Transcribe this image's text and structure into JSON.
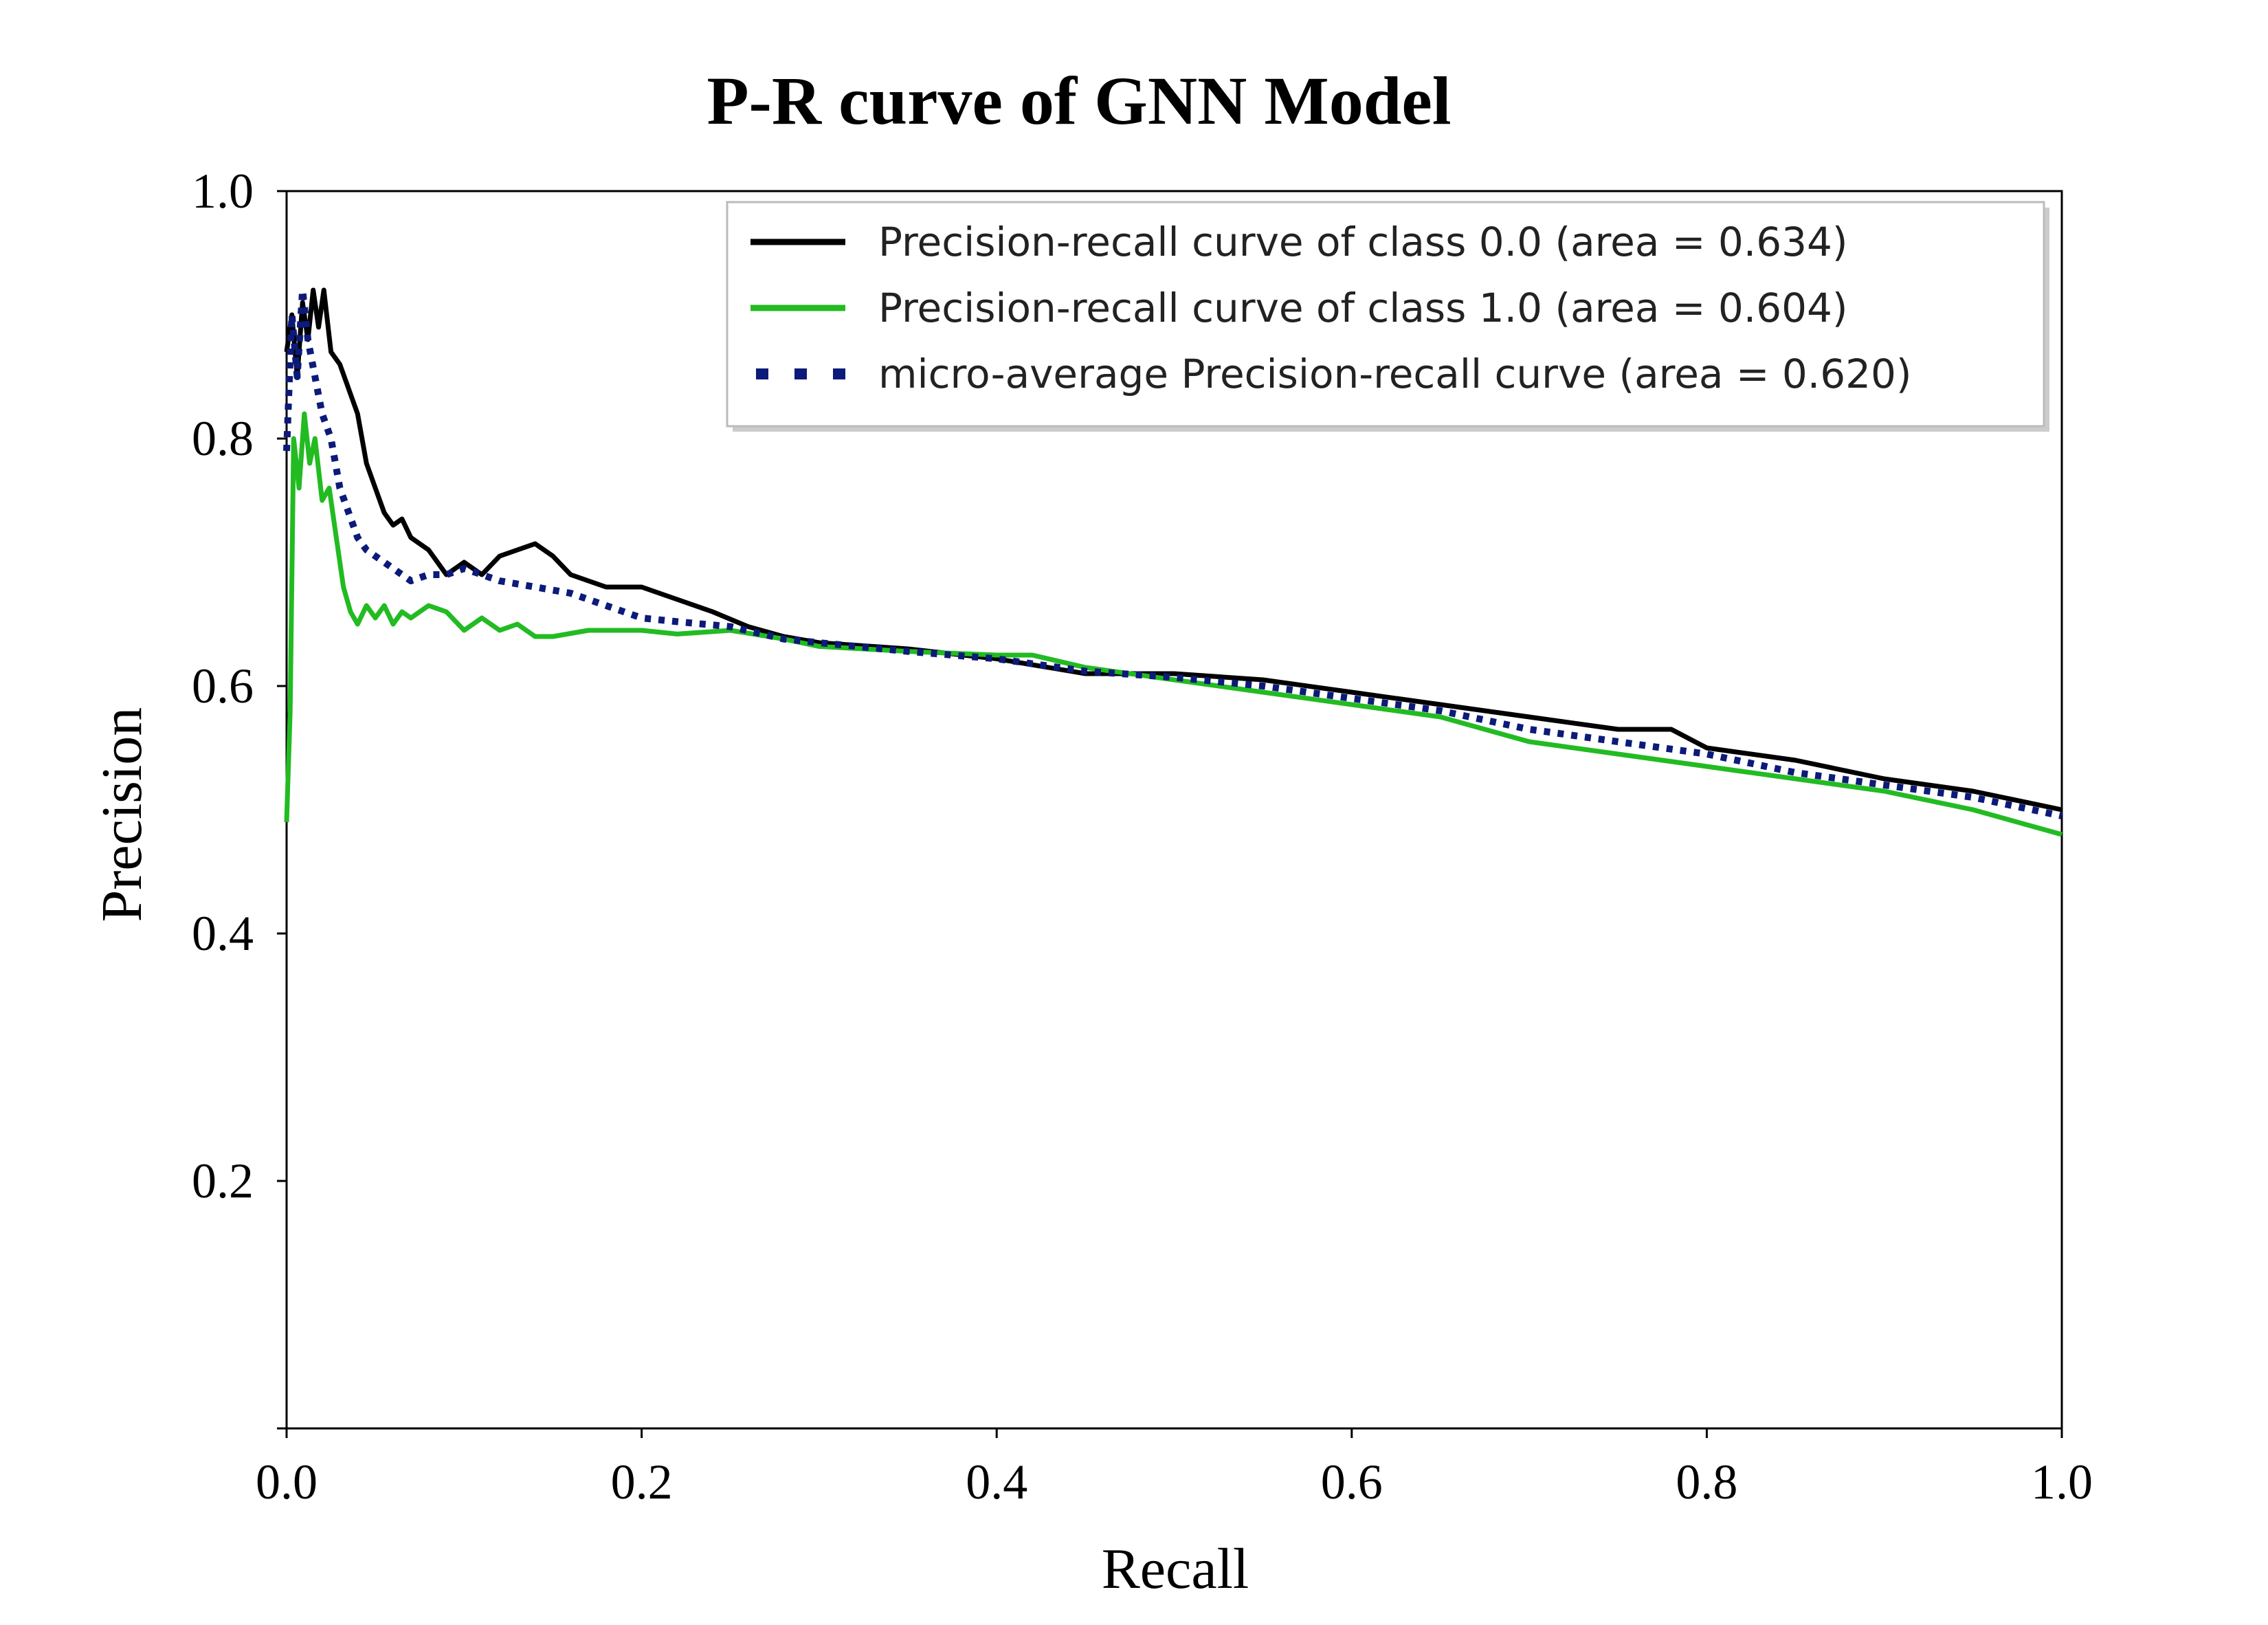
{
  "chart_data": {
    "type": "line",
    "title": "P-R curve of GNN Model",
    "xlabel": "Recall",
    "ylabel": "Precision",
    "xlim": [
      0.0,
      1.0
    ],
    "ylim": [
      0.0,
      1.0
    ],
    "x_ticks": [
      "0.0",
      "0.2",
      "0.4",
      "0.6",
      "0.8",
      "1.0"
    ],
    "y_ticks": [
      "0.2",
      "0.4",
      "0.6",
      "0.8",
      "1.0"
    ],
    "x_tick_values": [
      0.0,
      0.2,
      0.4,
      0.6,
      0.8,
      1.0
    ],
    "y_tick_values": [
      0.2,
      0.4,
      0.6,
      0.8,
      1.0
    ],
    "grid": false,
    "legend_position": "top-right",
    "series": [
      {
        "name": "Precision-recall curve of class 0.0 (area = 0.634)",
        "color": "#000000",
        "style": "solid",
        "x": [
          0.0,
          0.003,
          0.006,
          0.009,
          0.012,
          0.015,
          0.018,
          0.021,
          0.025,
          0.03,
          0.035,
          0.04,
          0.045,
          0.05,
          0.055,
          0.06,
          0.065,
          0.07,
          0.075,
          0.08,
          0.085,
          0.09,
          0.1,
          0.11,
          0.12,
          0.13,
          0.14,
          0.15,
          0.16,
          0.17,
          0.18,
          0.2,
          0.22,
          0.24,
          0.26,
          0.28,
          0.3,
          0.35,
          0.4,
          0.45,
          0.5,
          0.55,
          0.6,
          0.65,
          0.7,
          0.75,
          0.78,
          0.8,
          0.85,
          0.9,
          0.95,
          1.0
        ],
        "y": [
          0.87,
          0.9,
          0.85,
          0.91,
          0.88,
          0.92,
          0.89,
          0.92,
          0.87,
          0.86,
          0.84,
          0.82,
          0.78,
          0.76,
          0.74,
          0.73,
          0.735,
          0.72,
          0.715,
          0.71,
          0.7,
          0.69,
          0.7,
          0.69,
          0.705,
          0.71,
          0.715,
          0.705,
          0.69,
          0.685,
          0.68,
          0.68,
          0.67,
          0.66,
          0.648,
          0.64,
          0.635,
          0.63,
          0.622,
          0.61,
          0.61,
          0.605,
          0.595,
          0.585,
          0.575,
          0.565,
          0.565,
          0.55,
          0.54,
          0.525,
          0.515,
          0.5
        ]
      },
      {
        "name": "Precision-recall curve of class 1.0 (area = 0.604)",
        "color": "#22bb22",
        "style": "solid",
        "x": [
          0.0,
          0.002,
          0.004,
          0.007,
          0.01,
          0.013,
          0.016,
          0.02,
          0.024,
          0.028,
          0.032,
          0.036,
          0.04,
          0.045,
          0.05,
          0.055,
          0.06,
          0.065,
          0.07,
          0.08,
          0.09,
          0.1,
          0.11,
          0.12,
          0.13,
          0.14,
          0.15,
          0.17,
          0.2,
          0.22,
          0.25,
          0.28,
          0.3,
          0.35,
          0.4,
          0.42,
          0.45,
          0.5,
          0.55,
          0.6,
          0.65,
          0.7,
          0.75,
          0.8,
          0.85,
          0.9,
          0.95,
          1.0
        ],
        "y": [
          0.49,
          0.58,
          0.8,
          0.76,
          0.82,
          0.78,
          0.8,
          0.75,
          0.76,
          0.72,
          0.68,
          0.66,
          0.65,
          0.665,
          0.655,
          0.665,
          0.65,
          0.66,
          0.655,
          0.665,
          0.66,
          0.645,
          0.655,
          0.645,
          0.65,
          0.64,
          0.64,
          0.645,
          0.645,
          0.642,
          0.645,
          0.638,
          0.632,
          0.628,
          0.625,
          0.625,
          0.615,
          0.605,
          0.595,
          0.585,
          0.575,
          0.555,
          0.545,
          0.535,
          0.525,
          0.515,
          0.5,
          0.48
        ]
      },
      {
        "name": "micro-average Precision-recall curve (area = 0.620)",
        "color": "#0c1a7a",
        "style": "dotted",
        "x": [
          0.0,
          0.003,
          0.006,
          0.009,
          0.012,
          0.016,
          0.02,
          0.025,
          0.03,
          0.035,
          0.04,
          0.045,
          0.05,
          0.055,
          0.06,
          0.065,
          0.07,
          0.08,
          0.09,
          0.1,
          0.11,
          0.12,
          0.14,
          0.16,
          0.18,
          0.2,
          0.22,
          0.25,
          0.28,
          0.3,
          0.35,
          0.4,
          0.45,
          0.5,
          0.55,
          0.6,
          0.65,
          0.7,
          0.75,
          0.8,
          0.85,
          0.9,
          0.95,
          1.0
        ],
        "y": [
          0.79,
          0.9,
          0.85,
          0.92,
          0.88,
          0.85,
          0.82,
          0.8,
          0.76,
          0.74,
          0.72,
          0.71,
          0.705,
          0.7,
          0.695,
          0.69,
          0.685,
          0.69,
          0.69,
          0.695,
          0.69,
          0.685,
          0.68,
          0.675,
          0.665,
          0.655,
          0.652,
          0.648,
          0.638,
          0.635,
          0.628,
          0.622,
          0.612,
          0.607,
          0.6,
          0.59,
          0.58,
          0.565,
          0.555,
          0.545,
          0.53,
          0.52,
          0.51,
          0.495
        ]
      }
    ]
  }
}
